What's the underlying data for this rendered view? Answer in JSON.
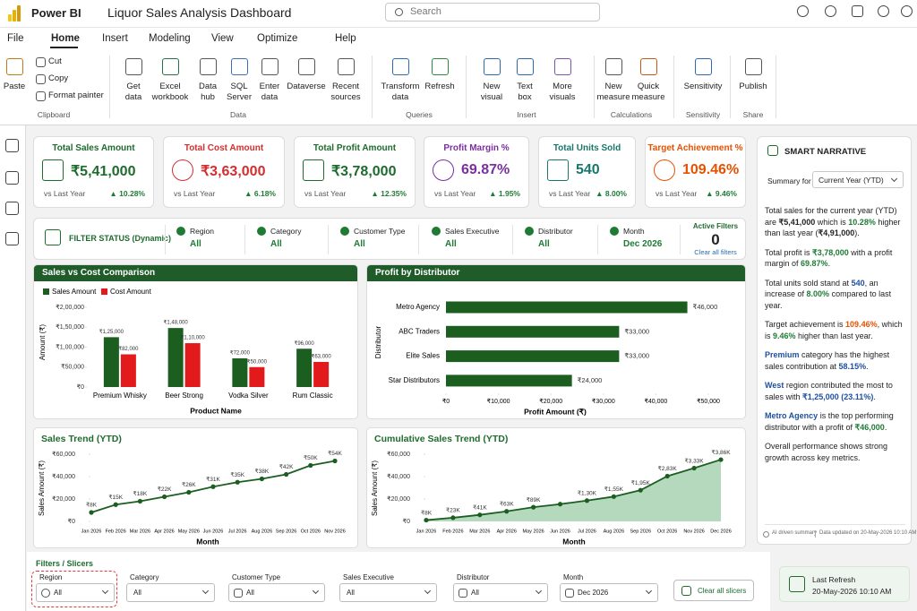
{
  "app": {
    "name": "Power BI",
    "title": "Liquor Sales Analysis  Dashboard",
    "search": "Search"
  },
  "menu": [
    "File",
    "Home",
    "Insert",
    "Modeling",
    "View",
    "Optimize",
    "Help"
  ],
  "ribbon": {
    "groups": [
      {
        "label": "Clipboard",
        "buttons": [
          "Paste",
          "Cut",
          "Copy",
          "Format painter"
        ]
      },
      {
        "label": "Data",
        "buttons": [
          "Get data",
          "Excel workbook",
          "Data hub",
          "SQL Server",
          "Enter data",
          "Dataverse",
          "Recent sources"
        ]
      },
      {
        "label": "Queries",
        "buttons": [
          "Transform data",
          "Refresh"
        ]
      },
      {
        "label": "Insert",
        "buttons": [
          "New visual",
          "Text box",
          "More visuals"
        ]
      },
      {
        "label": "Calculations",
        "buttons": [
          "New measure",
          "Quick measure"
        ]
      },
      {
        "label": "Sensitivity",
        "buttons": [
          "Sensitivity"
        ]
      },
      {
        "label": "Share",
        "buttons": [
          "Publish"
        ]
      }
    ]
  },
  "kpis": [
    {
      "title": "Total Sales Amount",
      "value": "₹5,41,000",
      "compare": "vs Last Year",
      "change": "▲ 10.28%",
      "color": "#1e6b2e"
    },
    {
      "title": "Total Cost Amount",
      "value": "₹3,63,000",
      "compare": "vs Last Year",
      "change": "▲ 6.18%",
      "color": "#d32f2f"
    },
    {
      "title": "Total Profit Amount",
      "value": "₹3,78,000",
      "compare": "vs Last Year",
      "change": "▲ 12.35%",
      "color": "#1e6b2e"
    },
    {
      "title": "Profit Margin %",
      "value": "69.87%",
      "compare": "vs Last Year",
      "change": "▲ 1.95%",
      "color": "#7b2fa0"
    },
    {
      "title": "Total Units Sold",
      "value": "540",
      "compare": "vs Last Year",
      "change": "▲ 8.00%",
      "color": "#17786a"
    },
    {
      "title": "Target Achievement %",
      "value": "109.46%",
      "compare": "vs Last Year",
      "change": "▲ 9.46%",
      "color": "#e65100"
    }
  ],
  "filter_status": {
    "title": "FILTER STATUS (Dynamic)",
    "items": [
      {
        "label": "Region",
        "value": "All"
      },
      {
        "label": "Category",
        "value": "All"
      },
      {
        "label": "Customer Type",
        "value": "All"
      },
      {
        "label": "Sales Executive",
        "value": "All"
      },
      {
        "label": "Distributor",
        "value": "All"
      },
      {
        "label": "Month",
        "value": "Dec 2026"
      }
    ],
    "active_label": "Active Filters",
    "active_count": 0,
    "clear": "Clear all filters"
  },
  "chart_data": [
    {
      "type": "bar",
      "title": "Sales vs Cost Comparison",
      "categories": [
        "Premium Whisky",
        "Beer Strong",
        "Vodka Silver",
        "Rum Classic"
      ],
      "series": [
        {
          "name": "Sales Amount",
          "color": "#1b5e20",
          "values": [
            125000,
            148000,
            72000,
            96000
          ],
          "value_labels": [
            "₹1,25,000",
            "₹1,48,000",
            "₹72,000",
            "₹96,000"
          ]
        },
        {
          "name": "Cost Amount",
          "color": "#e31a1c",
          "values": [
            82000,
            110000,
            50000,
            63000
          ],
          "value_labels": [
            "₹82,000",
            "₹1,10,000",
            "₹50,000",
            "₹63,000"
          ]
        }
      ],
      "x_label": "Product Name",
      "y_label": "Amount (₹)",
      "ylim": [
        0,
        200000
      ],
      "yticks": [
        {
          "value": 0,
          "label": "₹0"
        },
        {
          "value": 50000,
          "label": "₹50,000"
        },
        {
          "value": 100000,
          "label": "₹1,00,000"
        },
        {
          "value": 150000,
          "label": "₹1,50,000"
        },
        {
          "value": 200000,
          "label": "₹2,00,000"
        }
      ]
    },
    {
      "type": "hbar",
      "title": "Profit by Distributor",
      "categories": [
        "Metro Agency",
        "ABC Traders",
        "Elite Sales",
        "Star Distributors"
      ],
      "values": [
        46000,
        33000,
        33000,
        24000
      ],
      "value_labels": [
        "₹46,000",
        "₹33,000",
        "₹33,000",
        "₹24,000"
      ],
      "color": "#1b5e20",
      "x_label": "Profit Amount (₹)",
      "y_label": "Distributor",
      "xlim": [
        0,
        50000
      ],
      "xticks": [
        {
          "value": 0,
          "label": "₹0"
        },
        {
          "value": 10000,
          "label": "₹10,000"
        },
        {
          "value": 20000,
          "label": "₹20,000"
        },
        {
          "value": 30000,
          "label": "₹30,000"
        },
        {
          "value": 40000,
          "label": "₹40,000"
        },
        {
          "value": 50000,
          "label": "₹50,000"
        }
      ]
    },
    {
      "type": "line",
      "title": "Sales Trend (YTD)",
      "categories": [
        "Jan 2026",
        "Feb 2026",
        "Mar 2026",
        "Apr 2026",
        "May 2026",
        "Jun 2026",
        "Jul 2026",
        "Aug 2026",
        "Sep 2026",
        "Oct 2026",
        "Nov 2026"
      ],
      "values": [
        8000,
        15000,
        18000,
        22000,
        26000,
        31000,
        35000,
        38000,
        42000,
        50000,
        54000
      ],
      "value_labels": [
        "₹8K",
        "₹15K",
        "₹18K",
        "₹22K",
        "₹26K",
        "₹31K",
        "₹35K",
        "₹38K",
        "₹42K",
        "₹50K",
        "₹54K"
      ],
      "color": "#1b5e20",
      "x_label": "Month",
      "y_label": "Sales Amount (₹)",
      "ylim": [
        0,
        60000
      ],
      "yticks": [
        {
          "value": 0,
          "label": "₹0"
        },
        {
          "value": 20000,
          "label": "₹20,000"
        },
        {
          "value": 40000,
          "label": "₹40,000"
        },
        {
          "value": 60000,
          "label": "₹60,000"
        }
      ]
    },
    {
      "type": "area",
      "title": "Cumulative Sales Trend (YTD)",
      "categories": [
        "Jan 2026",
        "Feb 2026",
        "Mar 2026",
        "Apr 2026",
        "May 2026",
        "Jun 2026",
        "Jul 2026",
        "Aug 2026",
        "Sep 2026",
        "Oct 2026",
        "Nov 2026",
        "Dec 2026"
      ],
      "values": [
        8000,
        23000,
        41000,
        63000,
        89000,
        108000,
        130000,
        155000,
        195000,
        283000,
        333000,
        386000
      ],
      "value_labels": [
        "₹8K",
        "₹23K",
        "₹41K",
        "₹63K",
        "₹89K",
        null,
        "₹1,30K",
        "₹1,55K",
        "₹1,95K",
        "₹2,83K",
        "₹3,33K",
        "₹3,86K"
      ],
      "color": "#1b5e20",
      "fill": "#b5d9bd",
      "axis": "y2",
      "y2lim": [
        0,
        420000
      ],
      "x_label": "Month",
      "y_label": "Sales Amount (₹)",
      "ylim": [
        0,
        60000
      ],
      "yticks": [
        {
          "value": 0,
          "label": "₹0"
        },
        {
          "value": 20000,
          "label": "₹20,000"
        },
        {
          "value": 40000,
          "label": "₹40,000"
        },
        {
          "value": 60000,
          "label": "₹60,000"
        }
      ]
    }
  ],
  "narrative": {
    "title": "SMART NARRATIVE",
    "summary_label": "Summary for",
    "summary_value": "Current Year (YTD)",
    "paragraphs": [
      [
        "Total sales for the current year (YTD) are ",
        {
          "text": "₹5,41,000",
          "tone": "bold"
        },
        " which is ",
        {
          "text": "10.28%",
          "tone": "green"
        },
        " higher than last year (",
        {
          "text": "₹4,91,000",
          "tone": "bold"
        },
        ")."
      ],
      [
        "Total profit is ",
        {
          "text": "₹3,78,000",
          "tone": "green"
        },
        " with a profit margin of ",
        {
          "text": "69.87%",
          "tone": "green"
        },
        "."
      ],
      [
        "Total units sold stand at ",
        {
          "text": "540",
          "tone": "blue"
        },
        ", an increase of ",
        {
          "text": "8.00%",
          "tone": "green"
        },
        " compared to last year."
      ],
      [
        "Target achievement is ",
        {
          "text": "109.46%",
          "tone": "orange"
        },
        ", which is ",
        {
          "text": "9.46%",
          "tone": "green"
        },
        " higher than last year."
      ],
      [
        {
          "text": "Premium",
          "tone": "blue"
        },
        " category has the highest sales contribution at ",
        {
          "text": "58.15%",
          "tone": "blue"
        },
        "."
      ],
      [
        {
          "text": "West",
          "tone": "blue"
        },
        " region contributed the most to sales with ",
        {
          "text": "₹1,25,000 (23.11%)",
          "tone": "blue"
        },
        "."
      ],
      [
        {
          "text": "Metro Agency",
          "tone": "blue"
        },
        " is the top performing distributor with a profit of ",
        {
          "text": "₹46,000",
          "tone": "green"
        },
        "."
      ],
      [
        "Overall performance shows strong growth across key metrics."
      ]
    ],
    "footer": [
      "AI driven summary",
      "Data updated on 20-May-2026 10:10 AM"
    ]
  },
  "slicers": {
    "title": "Filters / Slicers",
    "items": [
      {
        "label": "Region",
        "value": "All"
      },
      {
        "label": "Category",
        "value": "All"
      },
      {
        "label": "Customer Type",
        "value": "All"
      },
      {
        "label": "Sales Executive",
        "value": "All"
      },
      {
        "label": "Distributor",
        "value": "All"
      },
      {
        "label": "Month",
        "value": "Dec 2026"
      }
    ],
    "clear": "Clear all slicers",
    "last_refresh_label": "Last Refresh",
    "last_refresh": "20-May-2026 10:10 AM"
  }
}
